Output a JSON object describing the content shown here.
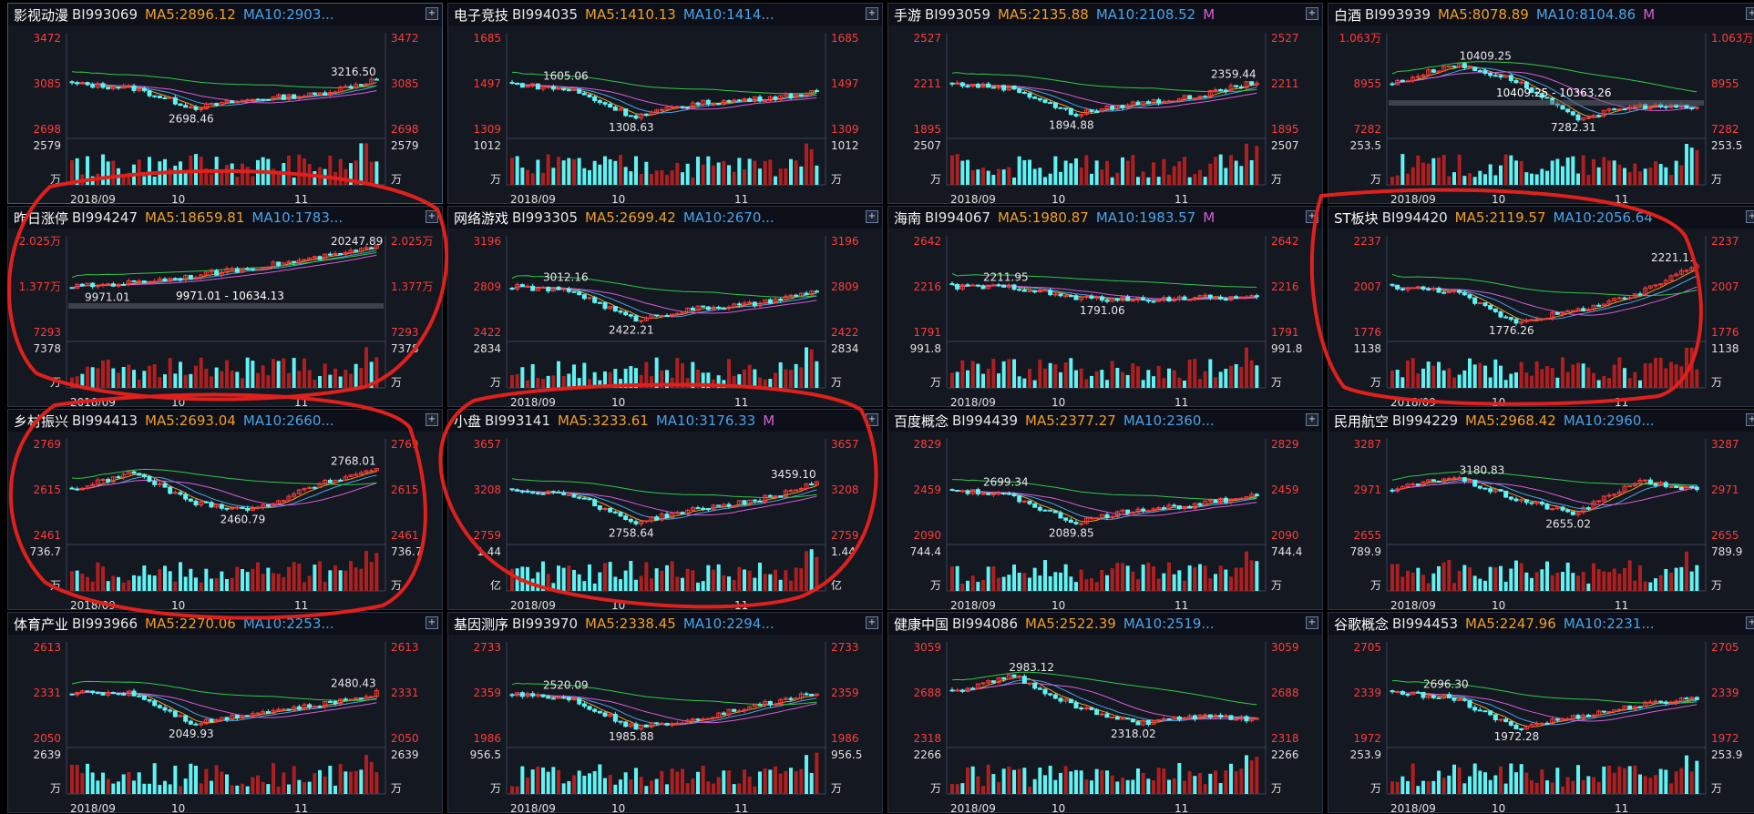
{
  "colors": {
    "up": "#ff3b3b",
    "down": "#5ff3f3",
    "ma5": "#f0a028",
    "ma10": "#4aa3e8",
    "ma20": "#d85cd8",
    "ma60": "#31c84a",
    "annotation": "#e0201c"
  },
  "x_labels": [
    "2018/09",
    "10",
    "11"
  ],
  "panels": [
    {
      "name": "影视动漫",
      "code": "BI993069",
      "ma5": "MA5:2896.12",
      "ma10": "MA10:2903...",
      "ma20": "",
      "top": "3472",
      "mid": "3085",
      "bot": "2698",
      "vol": "2579",
      "unit": "万",
      "high": "3216.50",
      "low": "2698.46",
      "start": 3180,
      "trend": [
        0,
        -0.1,
        -0.55,
        -0.35,
        -0.25,
        0.1
      ],
      "range": ""
    },
    {
      "name": "电子竞技",
      "code": "BI994035",
      "ma5": "MA5:1410.13",
      "ma10": "MA10:1414...",
      "ma20": "",
      "top": "1685",
      "mid": "1497",
      "bot": "1309",
      "vol": "1012",
      "unit": "万",
      "high": "1605.06",
      "low": "1308.63",
      "start": 1590,
      "trend": [
        0,
        -0.15,
        -0.75,
        -0.45,
        -0.35,
        -0.2
      ],
      "range": ""
    },
    {
      "name": "手游",
      "code": "BI993059",
      "ma5": "MA5:2135.88",
      "ma10": "MA10:2108.52",
      "ma20": "M",
      "top": "2527",
      "mid": "2211",
      "bot": "1895",
      "vol": "2507",
      "unit": "万",
      "high": "2359.44",
      "low": "1894.88",
      "start": 2340,
      "trend": [
        0,
        -0.1,
        -0.7,
        -0.45,
        -0.3,
        0.05
      ],
      "range": ""
    },
    {
      "name": "白酒",
      "code": "BI993939",
      "ma5": "MA5:8078.89",
      "ma10": "MA10:8104.86",
      "ma20": "M",
      "top": "1.063万",
      "mid": "8955",
      "bot": "7282",
      "vol": "253.5",
      "unit": "万",
      "high": "10409.25",
      "low": "7282.31",
      "start": 9100,
      "trend": [
        0,
        0.45,
        0.1,
        -0.8,
        -0.5,
        -0.55
      ],
      "range": "10409.25 - 10363.26"
    },
    {
      "name": "昨日涨停",
      "code": "BI994247",
      "ma5": "MA5:18659.81",
      "ma10": "MA10:1783...",
      "ma20": "",
      "top": "2.025万",
      "mid": "1.377万",
      "bot": "7293",
      "vol": "7378",
      "unit": "万",
      "high": "20247.89",
      "low": "9971.01",
      "start": 9900,
      "trend": [
        0,
        0.1,
        0.25,
        0.45,
        0.65,
        0.9
      ],
      "range": "9971.01 - 10634.13"
    },
    {
      "name": "网络游戏",
      "code": "BI993305",
      "ma5": "MA5:2699.42",
      "ma10": "MA10:2670...",
      "ma20": "",
      "top": "3196",
      "mid": "2809",
      "bot": "2422",
      "vol": "2834",
      "unit": "万",
      "high": "3012.16",
      "low": "2422.21",
      "start": 2990,
      "trend": [
        0,
        -0.1,
        -0.75,
        -0.5,
        -0.4,
        -0.1
      ],
      "range": ""
    },
    {
      "name": "海南",
      "code": "BI994067",
      "ma5": "MA5:1980.87",
      "ma10": "MA10:1983.57",
      "ma20": "M",
      "top": "2642",
      "mid": "2216",
      "bot": "1791",
      "vol": "991.8",
      "unit": "万",
      "high": "2211.95",
      "low": "1791.06",
      "start": 2200,
      "trend": [
        0,
        0,
        -0.25,
        -0.3,
        -0.25,
        -0.25
      ],
      "range": ""
    },
    {
      "name": "ST板块",
      "code": "BI994420",
      "ma5": "MA5:2119.57",
      "ma10": "MA10:2056.64",
      "ma20": "",
      "top": "2237",
      "mid": "2007",
      "bot": "1776",
      "vol": "1138",
      "unit": "万",
      "high": "2221.11",
      "low": "1776.26",
      "start": 2060,
      "trend": [
        0,
        -0.1,
        -0.8,
        -0.55,
        -0.2,
        0.55
      ],
      "range": ""
    },
    {
      "name": "乡村振兴",
      "code": "BI994413",
      "ma5": "MA5:2693.04",
      "ma10": "MA10:2660...",
      "ma20": "",
      "top": "2769",
      "mid": "2615",
      "bot": "2461",
      "vol": "736.7",
      "unit": "万",
      "high": "2768.01",
      "low": "2460.79",
      "start": 2600,
      "trend": [
        0,
        0.4,
        -0.3,
        -0.45,
        0.1,
        0.5
      ],
      "range": ""
    },
    {
      "name": "小盘",
      "code": "BI993141",
      "ma5": "MA5:3233.61",
      "ma10": "MA10:3176.33",
      "ma20": "M",
      "top": "3657",
      "mid": "3208",
      "bot": "2759",
      "vol": "1.44",
      "unit": "亿",
      "high": "3459.10",
      "low": "2758.64",
      "start": 3440,
      "trend": [
        0,
        -0.1,
        -0.75,
        -0.45,
        -0.25,
        0.15
      ],
      "range": ""
    },
    {
      "name": "百度概念",
      "code": "BI994439",
      "ma5": "MA5:2377.27",
      "ma10": "MA10:2360...",
      "ma20": "",
      "top": "2829",
      "mid": "2459",
      "bot": "2090",
      "vol": "744.4",
      "unit": "万",
      "high": "2699.34",
      "low": "2089.85",
      "start": 2680,
      "trend": [
        0,
        -0.15,
        -0.75,
        -0.45,
        -0.35,
        -0.1
      ],
      "range": ""
    },
    {
      "name": "民用航空",
      "code": "BI994229",
      "ma5": "MA5:2968.42",
      "ma10": "MA10:2960...",
      "ma20": "",
      "top": "3287",
      "mid": "2971",
      "bot": "2655",
      "vol": "789.9",
      "unit": "万",
      "high": "3180.83",
      "low": "2655.02",
      "start": 2960,
      "trend": [
        0,
        0.3,
        -0.2,
        -0.55,
        0.2,
        0
      ],
      "range": ""
    },
    {
      "name": "体育产业",
      "code": "BI993966",
      "ma5": "MA5:2270.06",
      "ma10": "MA10:2253...",
      "ma20": "",
      "top": "2613",
      "mid": "2331",
      "bot": "2050",
      "vol": "2639",
      "unit": "万",
      "high": "2480.43",
      "low": "2049.93",
      "start": 2460,
      "trend": [
        0,
        0,
        -0.7,
        -0.45,
        -0.3,
        0
      ],
      "range": ""
    },
    {
      "name": "基因测序",
      "code": "BI993970",
      "ma5": "MA5:2338.45",
      "ma10": "MA10:2294...",
      "ma20": "",
      "top": "2733",
      "mid": "2359",
      "bot": "1986",
      "vol": "956.5",
      "unit": "万",
      "high": "2520.09",
      "low": "1985.88",
      "start": 2500,
      "trend": [
        0,
        -0.15,
        -0.8,
        -0.6,
        -0.3,
        0
      ],
      "range": ""
    },
    {
      "name": "健康中国",
      "code": "BI994086",
      "ma5": "MA5:2522.39",
      "ma10": "MA10:2519...",
      "ma20": "",
      "top": "3059",
      "mid": "2688",
      "bot": "2318",
      "vol": "2266",
      "unit": "万",
      "high": "2983.12",
      "low": "2318.02",
      "start": 2800,
      "trend": [
        0,
        0.4,
        -0.3,
        -0.7,
        -0.55,
        -0.6
      ],
      "range": ""
    },
    {
      "name": "谷歌概念",
      "code": "BI994453",
      "ma5": "MA5:2247.96",
      "ma10": "MA10:2231...",
      "ma20": "",
      "top": "2705",
      "mid": "2339",
      "bot": "1972",
      "vol": "253.9",
      "unit": "万",
      "high": "2696.30",
      "low": "1972.28",
      "start": 2680,
      "trend": [
        0,
        -0.1,
        -0.8,
        -0.55,
        -0.3,
        -0.1
      ],
      "range": ""
    }
  ]
}
